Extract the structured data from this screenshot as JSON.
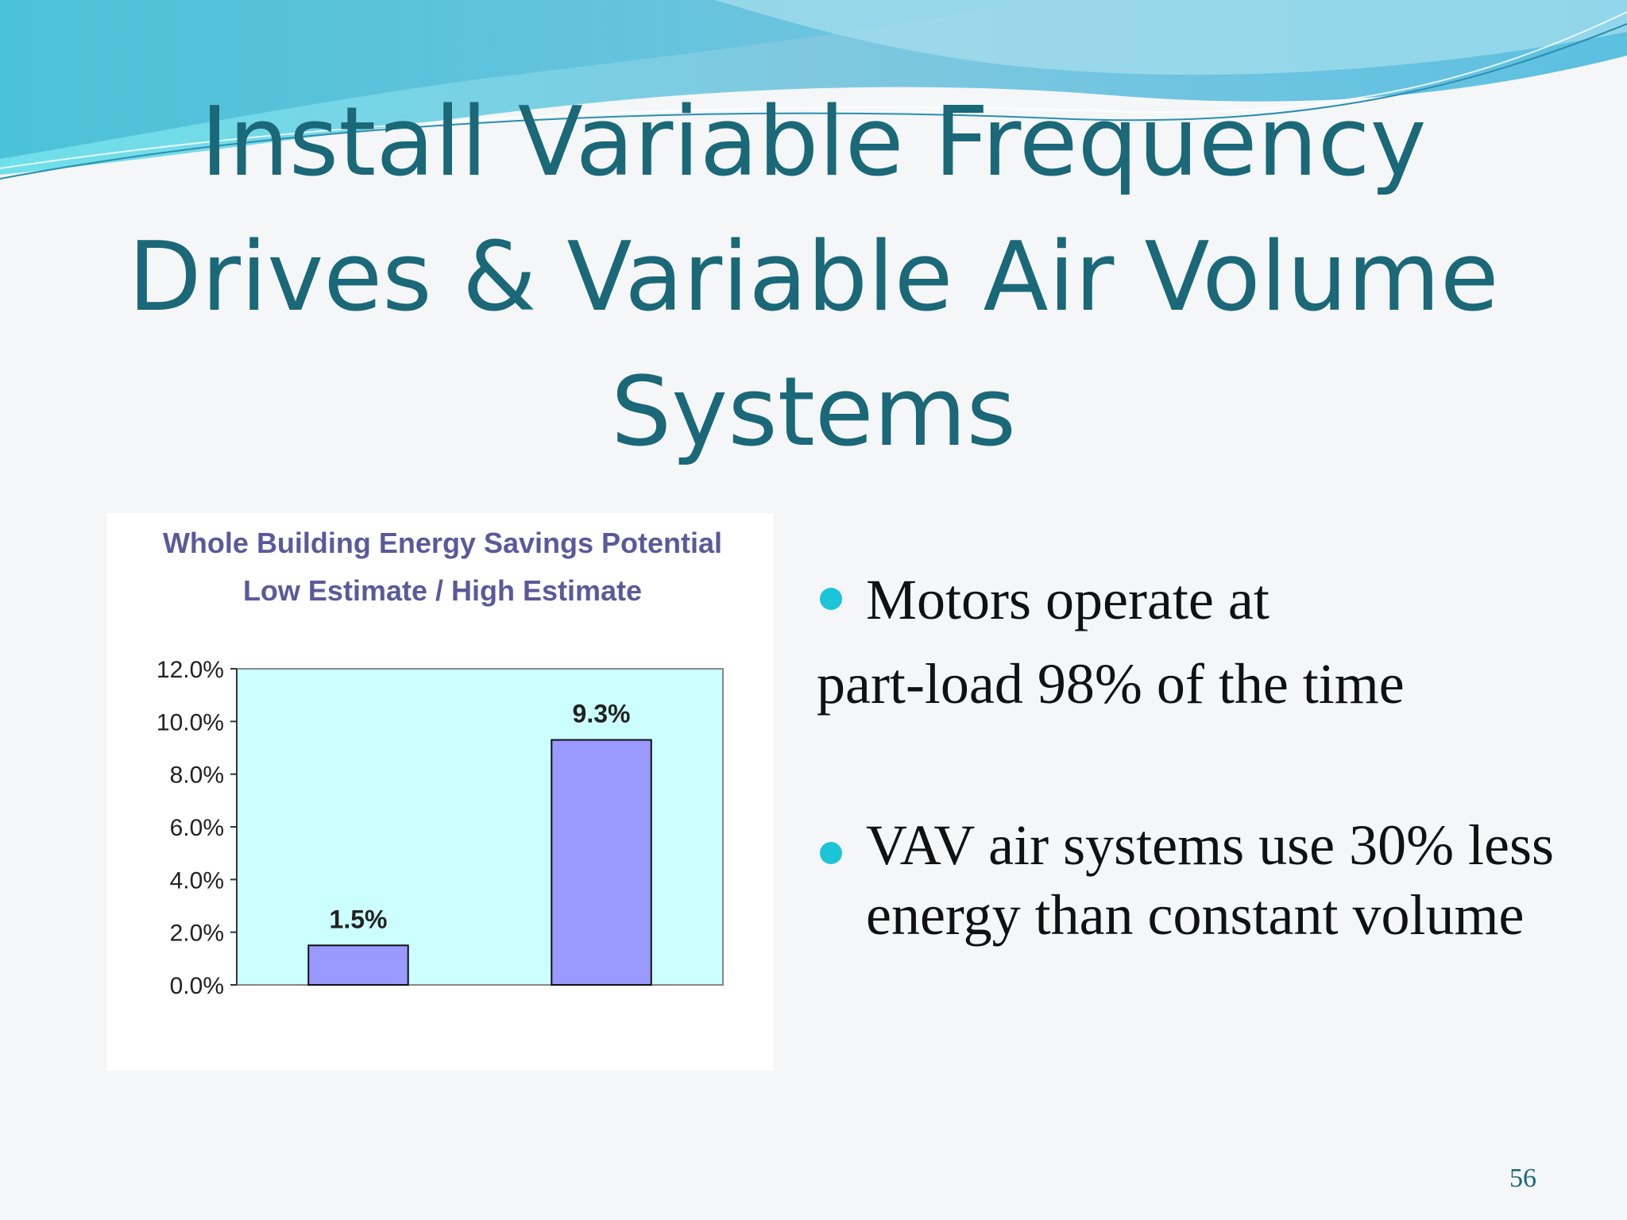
{
  "slide": {
    "title_lines": [
      "Install Variable Frequency",
      "Drives & Variable Air Volume",
      "Systems"
    ],
    "bullets": [
      {
        "line1": "Motors operate at",
        "line2": "part-load 98% of the time"
      },
      {
        "text": "VAV air systems use 30% less energy than constant volume"
      }
    ],
    "page_number": "56"
  },
  "colors": {
    "title": "#1a6878",
    "bullet": "#1cc4d8",
    "plot_bg": "#ccffff",
    "bar": "#9999ff",
    "chart_title": "#5a5a9a"
  },
  "chart_data": {
    "type": "bar",
    "title": "Whole Building Energy Savings Potential",
    "subtitle": "Low Estimate / High Estimate",
    "categories": [
      "",
      ""
    ],
    "values": [
      1.5,
      9.3
    ],
    "data_labels": [
      "1.5%",
      "9.3%"
    ],
    "yticks": [
      "0.0%",
      "2.0%",
      "4.0%",
      "6.0%",
      "8.0%",
      "10.0%",
      "12.0%"
    ],
    "ylim": [
      0,
      12
    ],
    "grid": false,
    "legend": "none"
  }
}
